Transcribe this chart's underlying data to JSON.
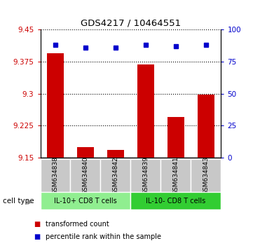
{
  "title": "GDS4217 / 10464551",
  "samples": [
    "GSM634838",
    "GSM634840",
    "GSM634842",
    "GSM634839",
    "GSM634841",
    "GSM634843"
  ],
  "transformed_counts": [
    9.395,
    9.175,
    9.168,
    9.368,
    9.245,
    9.298
  ],
  "percentile_ranks_pct": [
    88,
    86,
    86,
    88,
    87,
    88
  ],
  "bar_color": "#cc0000",
  "dot_color": "#0000cc",
  "ylim_left": [
    9.15,
    9.45
  ],
  "yticks_left": [
    9.15,
    9.225,
    9.3,
    9.375,
    9.45
  ],
  "yticks_right": [
    0,
    25,
    50,
    75,
    100
  ],
  "ylim_right": [
    0,
    100
  ],
  "groups": [
    {
      "label": "IL-10+ CD8 T cells",
      "indices": [
        0,
        1,
        2
      ],
      "color": "#90ee90"
    },
    {
      "label": "IL-10- CD8 T cells",
      "indices": [
        3,
        4,
        5
      ],
      "color": "#32cd32"
    }
  ],
  "cell_type_label": "cell type",
  "legend_bar_label": "transformed count",
  "legend_dot_label": "percentile rank within the sample",
  "tick_label_color_left": "#cc0000",
  "tick_label_color_right": "#0000cc",
  "bg_sample_label": "#c8c8c8"
}
